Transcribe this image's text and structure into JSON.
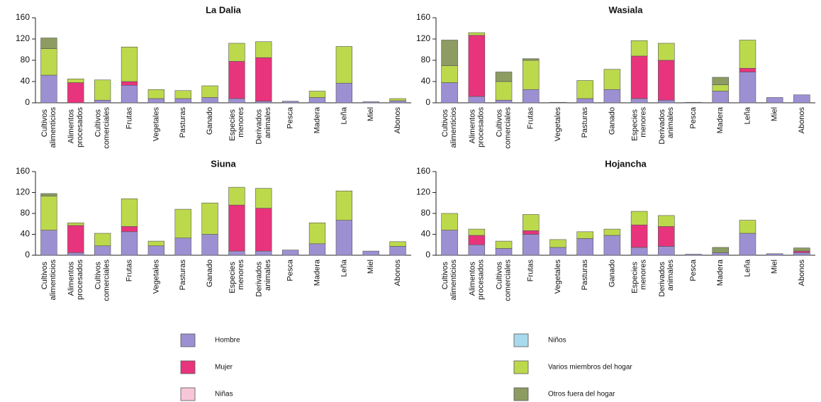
{
  "chart_data": [
    {
      "type": "bar",
      "stacked": true,
      "title": "La Dalia",
      "categories": [
        "Cultivos alimenticios",
        "Alimentos procesados",
        "Cultivos comerciales",
        "Frutas",
        "Vegetales",
        "Pasturas",
        "Ganado",
        "Especies menores",
        "Derivados animales",
        "Pesca",
        "Madera",
        "Leña",
        "Miel",
        "Abonos"
      ],
      "ylim": [
        0,
        160
      ],
      "yticks": [
        0,
        40,
        80,
        120,
        160
      ],
      "series": [
        {
          "name": "Hombre",
          "color": "#9d90d2",
          "values": [
            52,
            0,
            5,
            33,
            8,
            8,
            10,
            8,
            3,
            3,
            10,
            37,
            2,
            4
          ]
        },
        {
          "name": "Mujer",
          "color": "#e8347c",
          "values": [
            0,
            38,
            0,
            7,
            0,
            0,
            0,
            70,
            82,
            0,
            0,
            0,
            0,
            0
          ]
        },
        {
          "name": "Niñas",
          "color": "#f7c6d8",
          "values": [
            0,
            0,
            0,
            0,
            0,
            0,
            0,
            0,
            0,
            0,
            0,
            0,
            0,
            0
          ]
        },
        {
          "name": "Niños",
          "color": "#a9d9ec",
          "values": [
            0,
            0,
            0,
            0,
            0,
            0,
            0,
            0,
            0,
            0,
            0,
            0,
            0,
            0
          ]
        },
        {
          "name": "Varios miembros del hogar",
          "color": "#bcd94c",
          "values": [
            50,
            7,
            38,
            65,
            17,
            15,
            22,
            34,
            30,
            0,
            12,
            69,
            0,
            4
          ]
        },
        {
          "name": "Otros fuera del hogar",
          "color": "#8c9c62",
          "values": [
            20,
            0,
            0,
            0,
            0,
            0,
            0,
            0,
            0,
            0,
            0,
            0,
            0,
            0
          ]
        }
      ]
    },
    {
      "type": "bar",
      "stacked": true,
      "title": "Wasiala",
      "categories": [
        "Cultivos alimenticios",
        "Alimentos procesados",
        "Cultivos comerciales",
        "Frutas",
        "Vegetales",
        "Pasturas",
        "Ganado",
        "Especies menores",
        "Derivados animales",
        "Pesca",
        "Madera",
        "Leña",
        "Miel",
        "Abonos"
      ],
      "ylim": [
        0,
        160
      ],
      "yticks": [
        0,
        40,
        80,
        120,
        160
      ],
      "series": [
        {
          "name": "Hombre",
          "color": "#9d90d2",
          "values": [
            38,
            12,
            5,
            25,
            1,
            8,
            25,
            8,
            5,
            1,
            22,
            58,
            10,
            15
          ]
        },
        {
          "name": "Mujer",
          "color": "#e8347c",
          "values": [
            0,
            115,
            0,
            0,
            0,
            0,
            0,
            80,
            75,
            0,
            0,
            7,
            0,
            0
          ]
        },
        {
          "name": "Niñas",
          "color": "#f7c6d8",
          "values": [
            0,
            0,
            0,
            0,
            0,
            0,
            0,
            0,
            0,
            0,
            0,
            0,
            0,
            0
          ]
        },
        {
          "name": "Niños",
          "color": "#a9d9ec",
          "values": [
            0,
            0,
            0,
            0,
            0,
            0,
            0,
            0,
            0,
            0,
            0,
            0,
            0,
            0
          ]
        },
        {
          "name": "Varios miembros del hogar",
          "color": "#bcd94c",
          "values": [
            32,
            5,
            35,
            55,
            0,
            34,
            38,
            29,
            32,
            0,
            12,
            53,
            0,
            0
          ]
        },
        {
          "name": "Otros fuera del hogar",
          "color": "#8c9c62",
          "values": [
            48,
            0,
            18,
            3,
            0,
            0,
            0,
            0,
            0,
            0,
            14,
            0,
            0,
            0
          ]
        }
      ]
    },
    {
      "type": "bar",
      "stacked": true,
      "title": "Siuna",
      "categories": [
        "Cultivos alimenticios",
        "Alimentos procesados",
        "Cultivos comerciales",
        "Frutas",
        "Vegetales",
        "Pasturas",
        "Ganado",
        "Especies menores",
        "Derivados animales",
        "Pesca",
        "Madera",
        "Leña",
        "Miel",
        "Abonos"
      ],
      "ylim": [
        0,
        160
      ],
      "yticks": [
        0,
        40,
        80,
        120,
        160
      ],
      "series": [
        {
          "name": "Hombre",
          "color": "#9d90d2",
          "values": [
            48,
            5,
            18,
            45,
            18,
            33,
            40,
            8,
            8,
            10,
            22,
            67,
            8,
            17
          ]
        },
        {
          "name": "Mujer",
          "color": "#e8347c",
          "values": [
            0,
            52,
            0,
            10,
            0,
            0,
            0,
            88,
            82,
            0,
            0,
            0,
            0,
            0
          ]
        },
        {
          "name": "Niñas",
          "color": "#f7c6d8",
          "values": [
            0,
            0,
            0,
            0,
            0,
            0,
            0,
            0,
            0,
            0,
            0,
            0,
            0,
            0
          ]
        },
        {
          "name": "Niños",
          "color": "#a9d9ec",
          "values": [
            0,
            0,
            0,
            0,
            0,
            0,
            0,
            0,
            0,
            0,
            0,
            0,
            0,
            0
          ]
        },
        {
          "name": "Varios miembros del hogar",
          "color": "#bcd94c",
          "values": [
            65,
            5,
            24,
            53,
            9,
            55,
            60,
            34,
            38,
            0,
            40,
            56,
            0,
            9
          ]
        },
        {
          "name": "Otros fuera del hogar",
          "color": "#8c9c62",
          "values": [
            5,
            0,
            0,
            0,
            0,
            0,
            0,
            0,
            0,
            0,
            0,
            0,
            0,
            0
          ]
        }
      ]
    },
    {
      "type": "bar",
      "stacked": true,
      "title": "Hojancha",
      "categories": [
        "Cultivos alimenticios",
        "Alimentos procesados",
        "Cultivos comerciales",
        "Frutas",
        "Vegetales",
        "Pasturas",
        "Ganado",
        "Especies menores",
        "Derivados animales",
        "Pesca",
        "Madera",
        "Leña",
        "Miel",
        "Abonos"
      ],
      "ylim": [
        0,
        160
      ],
      "yticks": [
        0,
        40,
        80,
        120,
        160
      ],
      "series": [
        {
          "name": "Hombre",
          "color": "#9d90d2",
          "values": [
            48,
            20,
            13,
            40,
            15,
            32,
            38,
            15,
            17,
            2,
            5,
            42,
            3,
            5
          ]
        },
        {
          "name": "Mujer",
          "color": "#e8347c",
          "values": [
            0,
            18,
            0,
            7,
            0,
            0,
            0,
            43,
            38,
            0,
            0,
            0,
            0,
            3
          ]
        },
        {
          "name": "Niñas",
          "color": "#f7c6d8",
          "values": [
            0,
            0,
            0,
            0,
            0,
            0,
            0,
            0,
            0,
            0,
            0,
            0,
            0,
            0
          ]
        },
        {
          "name": "Niños",
          "color": "#a9d9ec",
          "values": [
            0,
            0,
            0,
            0,
            0,
            0,
            0,
            0,
            0,
            0,
            0,
            0,
            0,
            0
          ]
        },
        {
          "name": "Varios miembros del hogar",
          "color": "#bcd94c",
          "values": [
            32,
            12,
            14,
            31,
            15,
            13,
            12,
            26,
            21,
            0,
            0,
            25,
            0,
            0
          ]
        },
        {
          "name": "Otros fuera del hogar",
          "color": "#8c9c62",
          "values": [
            0,
            0,
            0,
            0,
            0,
            0,
            0,
            0,
            0,
            0,
            10,
            0,
            0,
            6
          ]
        }
      ]
    }
  ]
}
